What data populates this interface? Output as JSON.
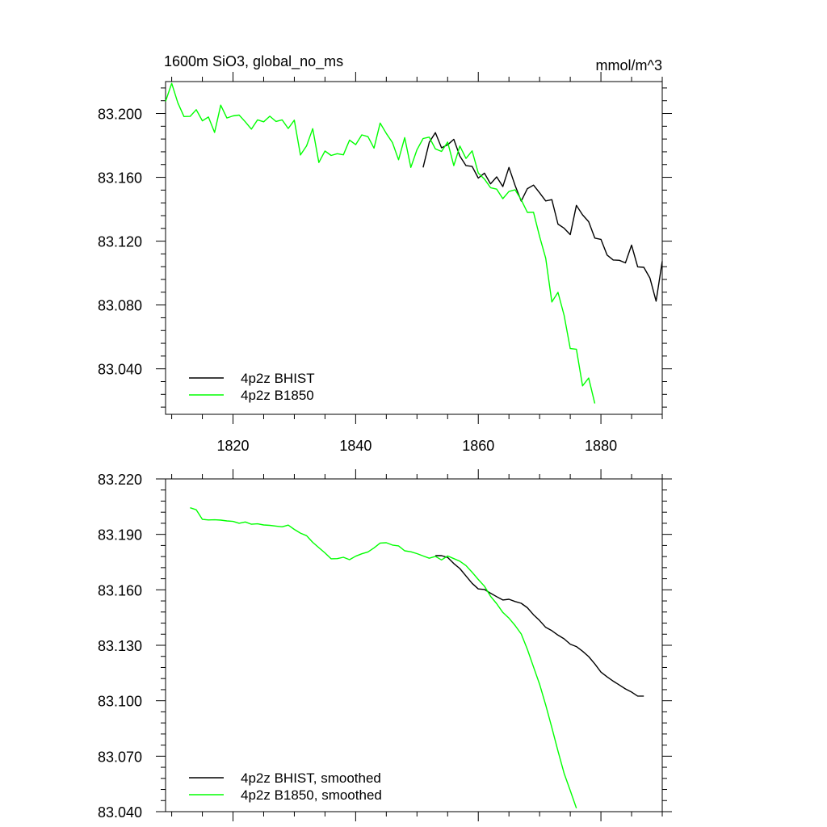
{
  "chart_data": [
    {
      "type": "line",
      "title": "1600m SiO3, global_no_ms",
      "units": "mmol/m^3",
      "xlabel": "",
      "ylabel": "",
      "xlim": [
        1809,
        1890
      ],
      "ylim": [
        83.0115,
        83.22
      ],
      "xticks": [
        1820,
        1840,
        1860,
        1880
      ],
      "xtick_labels": [
        "1820",
        "1840",
        "1860",
        "1880"
      ],
      "show_xtick_labels": true,
      "yticks": [
        83.04,
        83.08,
        83.12,
        83.16,
        83.2
      ],
      "ytick_labels": [
        "83.040",
        "83.080",
        "83.120",
        "83.160",
        "83.200"
      ],
      "grid": false,
      "legend": "bottom-left",
      "series": [
        {
          "name": "4p2z BHIST",
          "color": "#000000",
          "x": [
            1851,
            1852,
            1853,
            1854,
            1855,
            1856,
            1857,
            1858,
            1859,
            1860,
            1861,
            1862,
            1863,
            1864,
            1865,
            1866,
            1867,
            1868,
            1869,
            1870,
            1871,
            1872,
            1873,
            1874,
            1875,
            1876,
            1877,
            1878,
            1879,
            1880,
            1881,
            1882,
            1883,
            1884,
            1885,
            1886,
            1887,
            1888,
            1889,
            1890
          ],
          "y": [
            83.1662,
            83.1819,
            83.188,
            83.1785,
            83.1804,
            83.1838,
            83.1733,
            83.1673,
            83.1668,
            83.1595,
            83.1626,
            83.1559,
            83.1603,
            83.1542,
            83.1662,
            83.1549,
            83.1451,
            83.1529,
            83.1551,
            83.1503,
            83.1452,
            83.146,
            83.1307,
            83.1281,
            83.1241,
            83.1424,
            83.1365,
            83.1322,
            83.1219,
            83.1211,
            83.1113,
            83.1082,
            83.108,
            83.1064,
            83.1175,
            83.1039,
            83.1036,
            83.0968,
            83.0824,
            83.1074
          ]
        },
        {
          "name": "4p2z B1850",
          "color": "#00ff00",
          "x": [
            1809,
            1810,
            1811,
            1812,
            1813,
            1814,
            1815,
            1816,
            1817,
            1818,
            1819,
            1820,
            1821,
            1822,
            1823,
            1824,
            1825,
            1826,
            1827,
            1828,
            1829,
            1830,
            1831,
            1832,
            1833,
            1834,
            1835,
            1836,
            1837,
            1838,
            1839,
            1840,
            1841,
            1842,
            1843,
            1844,
            1845,
            1846,
            1847,
            1848,
            1849,
            1850,
            1851,
            1852,
            1853,
            1854,
            1855,
            1856,
            1857,
            1858,
            1859,
            1860,
            1861,
            1862,
            1863,
            1864,
            1865,
            1866,
            1867,
            1868,
            1869,
            1870,
            1871,
            1872,
            1873,
            1874,
            1875,
            1876,
            1877,
            1878,
            1879
          ],
          "y": [
            83.2076,
            83.2189,
            83.2067,
            83.1981,
            83.1982,
            83.2024,
            83.1954,
            83.1978,
            83.1881,
            83.2052,
            83.1972,
            83.1985,
            83.199,
            83.1948,
            83.1902,
            83.196,
            83.1948,
            83.1983,
            83.195,
            83.196,
            83.1906,
            83.1958,
            83.174,
            83.1797,
            83.1905,
            83.1693,
            83.1765,
            83.1737,
            83.1748,
            83.1741,
            83.1833,
            83.1805,
            83.1866,
            83.1855,
            83.1783,
            83.194,
            83.1875,
            83.1818,
            83.171,
            83.1849,
            83.1662,
            83.1773,
            83.1843,
            83.1852,
            83.1778,
            83.1762,
            83.1821,
            83.1673,
            83.1796,
            83.1718,
            83.1766,
            83.1627,
            83.1589,
            83.1535,
            83.1526,
            83.1466,
            83.1511,
            83.1522,
            83.1459,
            83.138,
            83.1381,
            83.123,
            83.1093,
            83.0819,
            83.0879,
            83.0735,
            83.0527,
            83.0523,
            83.0293,
            83.0342,
            83.0183
          ]
        }
      ]
    },
    {
      "type": "line",
      "title": "",
      "units": "",
      "xlabel": "",
      "ylabel": "",
      "xlim": [
        1809,
        1890
      ],
      "ylim": [
        83.04,
        83.22
      ],
      "xticks": [
        1820,
        1840,
        1860,
        1880
      ],
      "xtick_labels": [
        "1820",
        "1840",
        "1860",
        "1880"
      ],
      "show_xtick_labels": false,
      "yticks": [
        83.04,
        83.07,
        83.1,
        83.13,
        83.16,
        83.19,
        83.22
      ],
      "ytick_labels": [
        "83.040",
        "83.070",
        "83.100",
        "83.130",
        "83.160",
        "83.190",
        "83.220"
      ],
      "grid": false,
      "legend": "bottom-left",
      "series": [
        {
          "name": "4p2z BHIST, smoothed",
          "color": "#000000",
          "x": [
            1853,
            1854,
            1855,
            1856,
            1857,
            1858,
            1859,
            1860,
            1861,
            1862,
            1863,
            1864,
            1865,
            1866,
            1867,
            1868,
            1869,
            1870,
            1871,
            1872,
            1873,
            1874,
            1875,
            1876,
            1877,
            1878,
            1879,
            1880,
            1881,
            1882,
            1883,
            1884,
            1885,
            1886,
            1887
          ],
          "y": [
            83.1785,
            83.1785,
            83.1775,
            83.1742,
            83.1715,
            83.1675,
            83.1635,
            83.1605,
            83.1602,
            83.1582,
            83.1563,
            83.1545,
            83.1549,
            83.1537,
            83.1527,
            83.1503,
            83.1465,
            83.1434,
            83.1397,
            83.1379,
            83.1355,
            83.1335,
            83.1306,
            83.1293,
            83.1268,
            83.1239,
            83.1199,
            83.1155,
            83.1129,
            83.1106,
            83.1085,
            83.1064,
            83.1047,
            83.1025,
            83.1025
          ]
        },
        {
          "name": "4p2z B1850, smoothed",
          "color": "#00ff00",
          "x": [
            1813,
            1814,
            1815,
            1816,
            1817,
            1818,
            1819,
            1820,
            1821,
            1822,
            1823,
            1824,
            1825,
            1826,
            1827,
            1828,
            1829,
            1830,
            1831,
            1832,
            1833,
            1834,
            1835,
            1836,
            1837,
            1838,
            1839,
            1840,
            1841,
            1842,
            1843,
            1844,
            1845,
            1846,
            1847,
            1848,
            1849,
            1850,
            1851,
            1852,
            1853,
            1854,
            1855,
            1856,
            1857,
            1858,
            1859,
            1860,
            1861,
            1862,
            1863,
            1864,
            1865,
            1866,
            1867,
            1868,
            1869,
            1870,
            1871,
            1872,
            1873,
            1874,
            1875,
            1876
          ],
          "y": [
            83.2044,
            83.2033,
            83.1981,
            83.1978,
            83.1979,
            83.1977,
            83.1973,
            83.197,
            83.196,
            83.1967,
            83.1955,
            83.1957,
            83.1951,
            83.1949,
            83.1945,
            83.1941,
            83.195,
            83.1927,
            83.1907,
            83.1893,
            83.1857,
            83.1828,
            83.18,
            83.1768,
            83.1769,
            83.1776,
            83.1763,
            83.1782,
            83.1795,
            83.1805,
            83.1827,
            83.1853,
            83.1855,
            83.1842,
            83.1838,
            83.1811,
            83.1806,
            83.1796,
            83.1783,
            83.1771,
            83.1781,
            83.1762,
            83.1783,
            83.1769,
            83.1755,
            83.1731,
            83.1695,
            83.1656,
            83.162,
            83.1565,
            83.1525,
            83.1478,
            83.1447,
            83.1407,
            83.1361,
            83.1278,
            83.1183,
            83.109,
            83.0977,
            83.0855,
            83.0728,
            83.0607,
            83.0514,
            83.0419
          ]
        }
      ]
    }
  ]
}
